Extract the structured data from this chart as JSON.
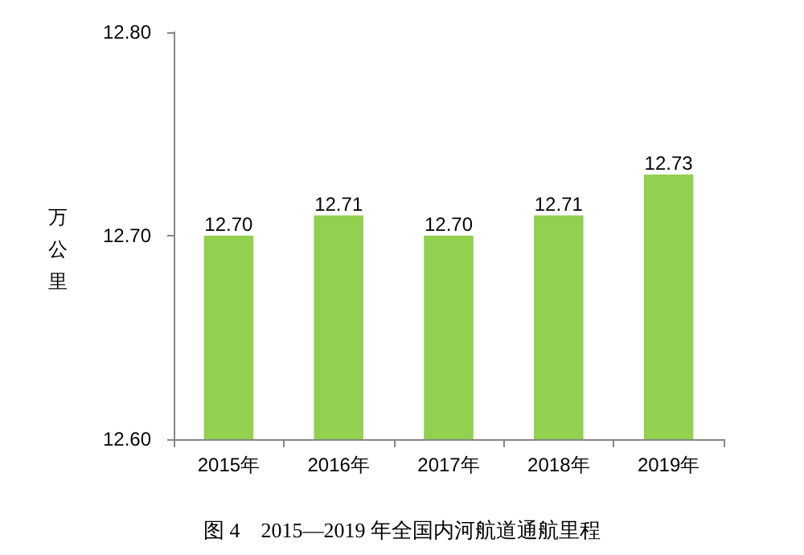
{
  "chart_data": {
    "type": "bar",
    "title": "图 4　2015—2019 年全国内河航道通航里程",
    "ylabel": "万公里",
    "categories": [
      "2015年",
      "2016年",
      "2017年",
      "2018年",
      "2019年"
    ],
    "values": [
      12.7,
      12.71,
      12.7,
      12.71,
      12.73
    ],
    "color": "#92d050",
    "ylim": [
      12.6,
      12.8
    ],
    "yticks": [
      {
        "value": 12.6,
        "label": "12.60"
      },
      {
        "value": 12.7,
        "label": "12.70"
      },
      {
        "value": 12.8,
        "label": "12.80"
      }
    ],
    "value_labels": [
      "12.70",
      "12.71",
      "12.70",
      "12.71",
      "12.73"
    ],
    "grid": false
  }
}
